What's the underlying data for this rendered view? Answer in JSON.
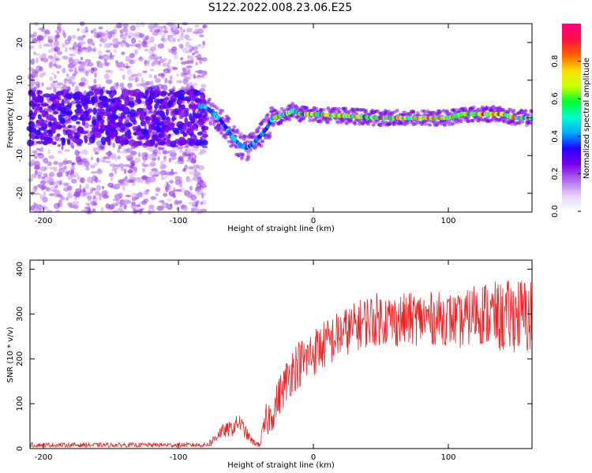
{
  "title": "S122.2022.008.23.06.E25",
  "colors": {
    "snr_line": "#ee2222",
    "colormap": [
      "#ffffff",
      "#e8d4f8",
      "#b06af0",
      "#7a00e6",
      "#2400ff",
      "#00a8ff",
      "#00ffd0",
      "#00ff30",
      "#c8ff00",
      "#ffe000",
      "#ff6000",
      "#ff1040",
      "#ff0080"
    ]
  },
  "chart_data": [
    {
      "type": "heatmap",
      "xlabel": "Height of straight line (km)",
      "ylabel": "Frequency (Hz)",
      "xlim": [
        -210,
        162
      ],
      "ylim": [
        -25,
        25
      ],
      "xticks": [
        -200,
        -100,
        0,
        100
      ],
      "yticks": [
        -20,
        -10,
        0,
        10,
        20
      ],
      "colorbar": {
        "label": "Normalized spectral amplitude",
        "range": [
          0,
          1
        ],
        "ticks": [
          "0.0",
          "0.2",
          "0.4",
          "0.6",
          "0.8"
        ]
      },
      "ridge": {
        "x": [
          -210,
          -100,
          -85,
          -80,
          -70,
          -60,
          -55,
          -50,
          -45,
          -40,
          -35,
          -30,
          -20,
          -15,
          -10,
          0,
          50,
          100,
          110,
          120,
          130,
          140,
          150,
          162
        ],
        "freq": [
          0,
          0,
          3,
          3,
          0,
          -5,
          -7,
          -8,
          -7,
          -5,
          -3,
          0,
          1,
          2,
          1,
          1,
          0,
          0,
          1,
          1,
          1,
          1,
          0,
          0
        ]
      },
      "noise_region": {
        "x": [
          -210,
          -80
        ],
        "freq_spread": [
          -25,
          25
        ]
      }
    },
    {
      "type": "line",
      "xlabel": "Height of straight line (km)",
      "ylabel": "SNR (10 * v/v)",
      "xlim": [
        -210,
        162
      ],
      "ylim": [
        0,
        420
      ],
      "xticks": [
        -200,
        -100,
        0,
        100
      ],
      "yticks": [
        0,
        100,
        200,
        300,
        400
      ],
      "series": [
        {
          "envelope_x": [
            -210,
            -80,
            -75,
            -70,
            -60,
            -55,
            -50,
            -45,
            -40,
            -35,
            -30,
            -25,
            -20,
            -15,
            -10,
            -5,
            0,
            10,
            20,
            30,
            40,
            50,
            60,
            80,
            100,
            110,
            120,
            130,
            140,
            150,
            162
          ],
          "envelope_y": [
            8,
            8,
            15,
            35,
            45,
            60,
            35,
            15,
            8,
            60,
            80,
            120,
            150,
            180,
            190,
            200,
            215,
            235,
            255,
            270,
            285,
            290,
            285,
            290,
            290,
            280,
            305,
            300,
            290,
            300,
            290
          ],
          "noise_amplitude": [
            5,
            5,
            12,
            15,
            18,
            20,
            15,
            8,
            5,
            40,
            40,
            45,
            50,
            55,
            55,
            55,
            55,
            55,
            55,
            55,
            60,
            60,
            60,
            60,
            60,
            60,
            70,
            75,
            80,
            85,
            90
          ]
        }
      ]
    }
  ]
}
